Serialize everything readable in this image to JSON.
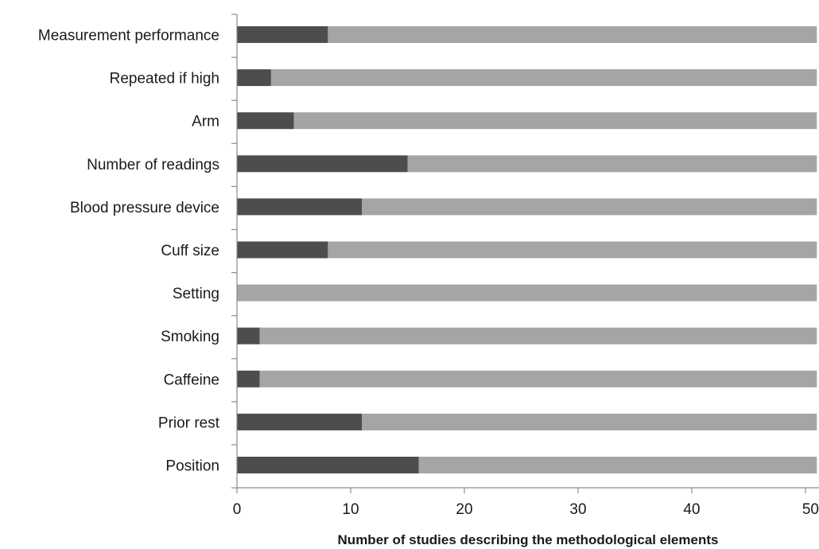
{
  "chart_data": {
    "type": "bar",
    "orientation": "horizontal",
    "stacked": true,
    "title": "",
    "xlabel": "Number of studies describing the methodological elements",
    "ylabel": "",
    "xlim": [
      0,
      51
    ],
    "xticks": [
      "0",
      "10",
      "20",
      "30",
      "40",
      "50"
    ],
    "grid": false,
    "legend": "none",
    "categories": [
      "Measurement performance",
      "Repeated if high",
      "Arm",
      "Number of readings",
      "Blood pressure device",
      "Cuff size",
      "Setting",
      "Smoking",
      "Caffeine",
      "Prior rest",
      "Position"
    ],
    "series": [
      {
        "color": "#4d4d4d",
        "values": [
          8,
          3,
          5,
          15,
          11,
          8,
          0,
          2,
          2,
          11,
          16
        ]
      },
      {
        "color": "#a5a5a5",
        "values": [
          43,
          48,
          46,
          36,
          40,
          43,
          51,
          49,
          49,
          40,
          35
        ]
      }
    ]
  }
}
